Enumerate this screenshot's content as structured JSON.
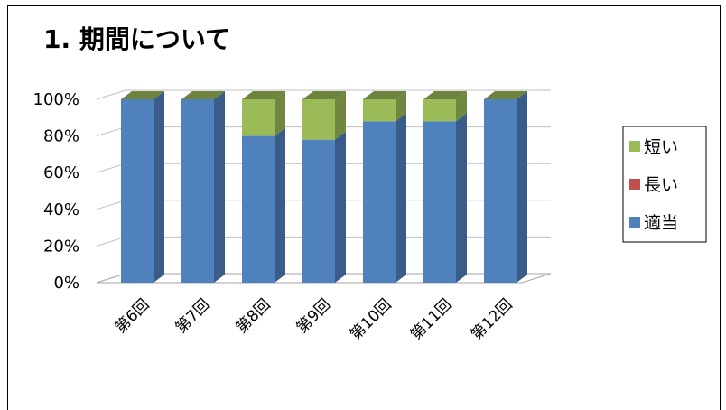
{
  "chart_data": {
    "type": "bar",
    "stacked": true,
    "title": "1. 期間について",
    "categories": [
      "第6回",
      "第7回",
      "第8回",
      "第9回",
      "第10回",
      "第11回",
      "第12回"
    ],
    "series": [
      {
        "name": "適当",
        "values": [
          100,
          100,
          80,
          78,
          88,
          88,
          100
        ],
        "color": "#4F81BD"
      },
      {
        "name": "長い",
        "values": [
          0,
          0,
          0,
          0,
          0,
          0,
          0
        ],
        "color": "#C0504D"
      },
      {
        "name": "短い",
        "values": [
          0,
          0,
          20,
          22,
          12,
          12,
          0
        ],
        "color": "#9BBB59"
      }
    ],
    "ylim": [
      0,
      100
    ],
    "yticks": [
      "0%",
      "20%",
      "40%",
      "60%",
      "80%",
      "100%"
    ],
    "legend_order": [
      "短い",
      "長い",
      "適当"
    ],
    "legend_position": "right",
    "grid": true
  }
}
